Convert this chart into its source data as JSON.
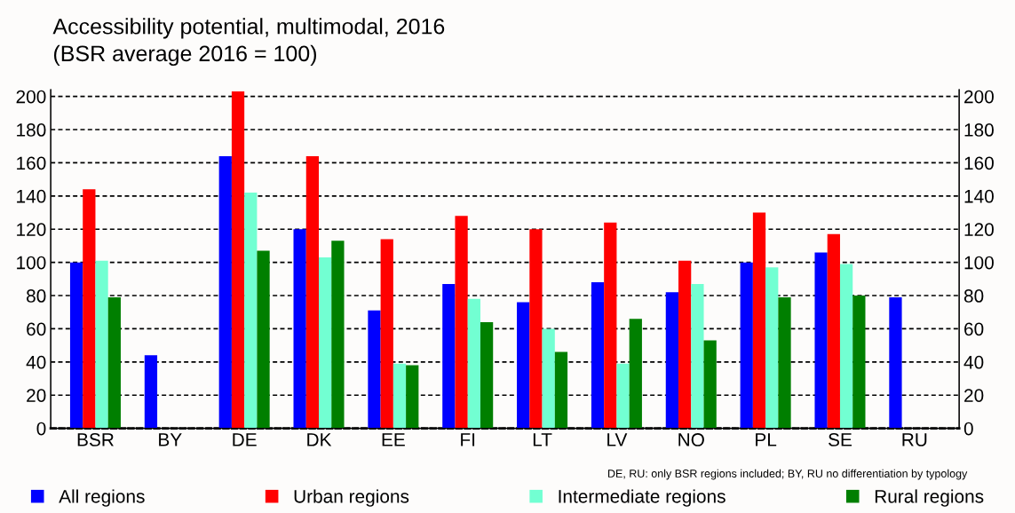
{
  "chart_data": {
    "type": "bar",
    "title": "Accessibility potential, multimodal, 2016\n(BSR average 2016 = 100)",
    "categories": [
      "BSR",
      "BY",
      "DE",
      "DK",
      "EE",
      "FI",
      "LT",
      "LV",
      "NO",
      "PL",
      "SE",
      "RU"
    ],
    "series": [
      {
        "name": "All regions",
        "color": "#0000ff",
        "values": [
          100,
          44,
          164,
          120,
          71,
          87,
          76,
          88,
          82,
          100,
          106,
          79
        ]
      },
      {
        "name": "Urban regions",
        "color": "#ff0000",
        "values": [
          144,
          null,
          203,
          164,
          114,
          128,
          120,
          124,
          101,
          130,
          117,
          null
        ]
      },
      {
        "name": "Intermediate regions",
        "color": "#72ffd2",
        "values": [
          101,
          null,
          142,
          103,
          39,
          78,
          60,
          39,
          87,
          97,
          99,
          null
        ]
      },
      {
        "name": "Rural regions",
        "color": "#007f00",
        "values": [
          79,
          null,
          107,
          113,
          38,
          64,
          46,
          66,
          53,
          79,
          80,
          null
        ]
      }
    ],
    "ylim": [
      0,
      204
    ],
    "yticks": [
      0,
      20,
      40,
      60,
      80,
      100,
      120,
      140,
      160,
      180,
      200
    ],
    "y2lim": [
      0,
      204
    ],
    "y2ticks": [
      0,
      20,
      40,
      60,
      80,
      100,
      120,
      140,
      160,
      180,
      200
    ],
    "grid": "y",
    "legend": "bottom",
    "annotations": [
      "DE, RU: only BSR regions included; BY, RU no differentiation by typology"
    ]
  }
}
